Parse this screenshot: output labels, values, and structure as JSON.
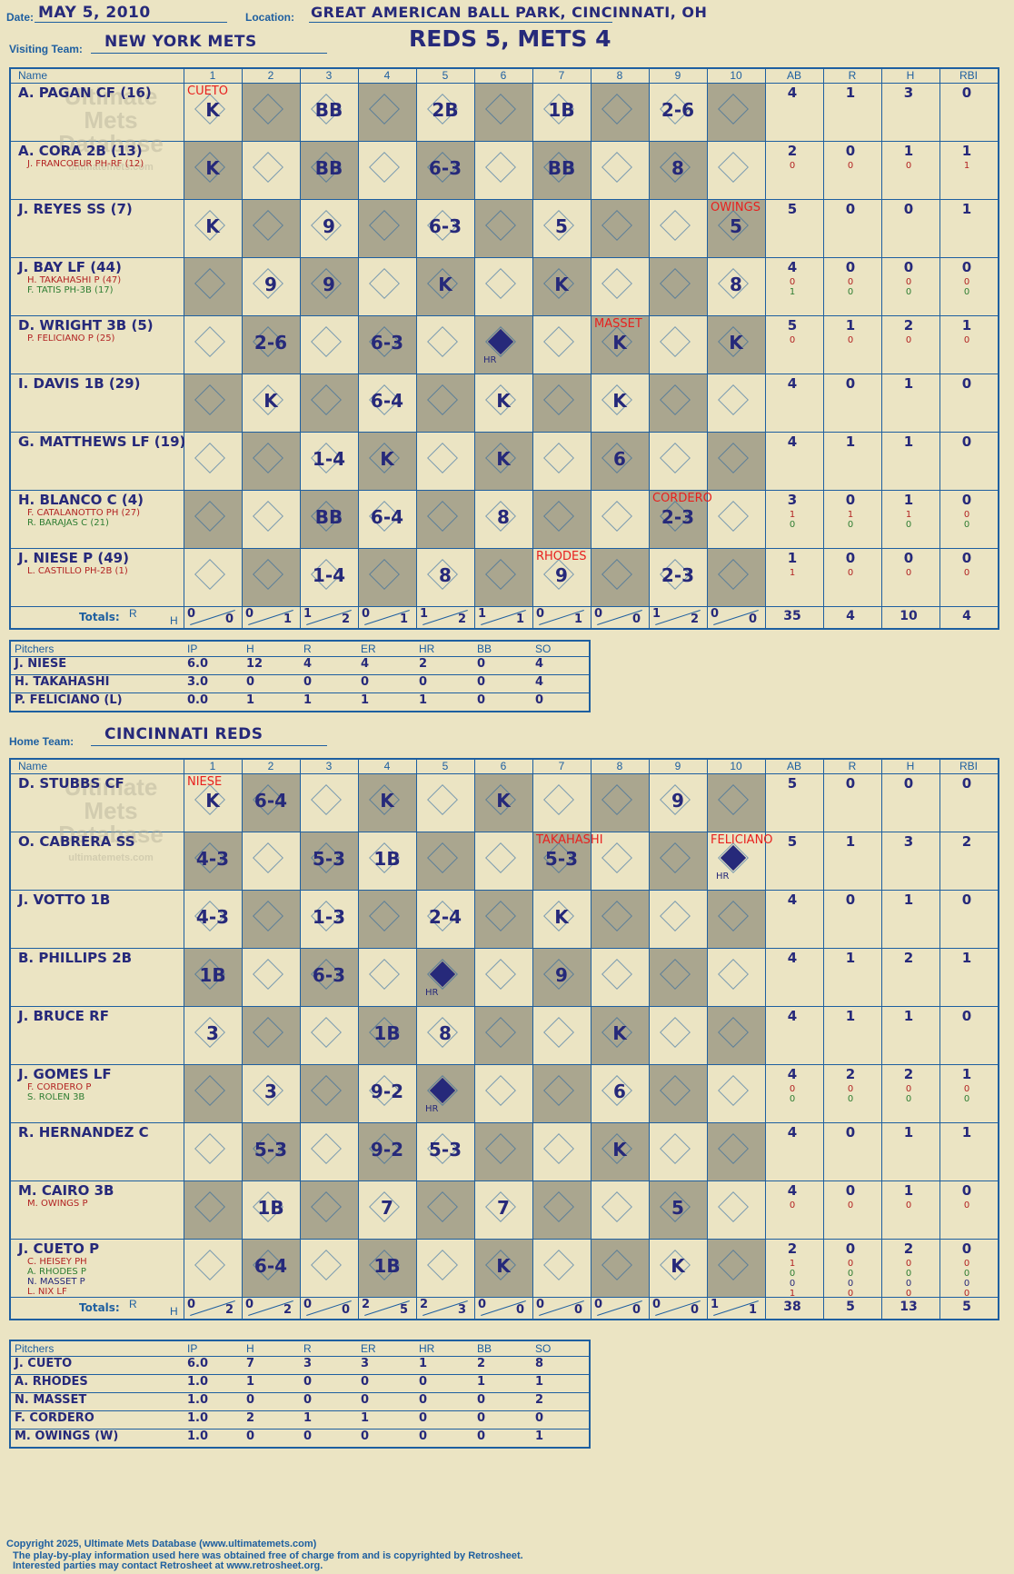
{
  "header": {
    "date_label": "Date:",
    "date": "MAY 5, 2010",
    "location_label": "Location:",
    "location": "GREAT AMERICAN BALL PARK, CINCINNATI, OH",
    "visiting_label": "Visiting Team:",
    "visiting_team": "NEW YORK METS",
    "score": "REDS 5, METS 4",
    "home_label": "Home Team:",
    "home_team": "CINCINNATI REDS"
  },
  "watermark": {
    "line1": "Ultimate",
    "line2": "Mets",
    "line3": "Database",
    "url": "ultimatemets.com"
  },
  "columns": {
    "name": "Name",
    "innings": [
      "1",
      "2",
      "3",
      "4",
      "5",
      "6",
      "7",
      "8",
      "9",
      "10"
    ],
    "stats": [
      "AB",
      "R",
      "H",
      "RBI"
    ],
    "totals_label": "Totals:",
    "r": "R",
    "h": "H"
  },
  "visitors": {
    "batters": [
      {
        "name": "A. PAGAN CF (16)",
        "subs": [],
        "stats": [
          "4",
          "1",
          "3",
          "0"
        ],
        "substats": []
      },
      {
        "name": "A. CORA 2B (13)",
        "subs": [
          {
            "text": "J. FRANCOEUR PH-RF (12)",
            "color": "#b22222"
          }
        ],
        "stats": [
          "2",
          "0",
          "1",
          "1"
        ],
        "substats": [
          [
            "0",
            "0",
            "0",
            "1"
          ]
        ]
      },
      {
        "name": "J. REYES SS (7)",
        "subs": [],
        "stats": [
          "5",
          "0",
          "0",
          "1"
        ],
        "substats": []
      },
      {
        "name": "J. BAY LF (44)",
        "subs": [
          {
            "text": "H. TAKAHASHI P (47)",
            "color": "#b22222"
          },
          {
            "text": "F. TATIS PH-3B (17)",
            "color": "#2e7d32"
          }
        ],
        "stats": [
          "4",
          "0",
          "0",
          "0"
        ],
        "substats": [
          [
            "0",
            "0",
            "0",
            "0"
          ],
          [
            "1",
            "0",
            "0",
            "0"
          ]
        ]
      },
      {
        "name": "D. WRIGHT 3B (5)",
        "subs": [
          {
            "text": "P. FELICIANO P (25)",
            "color": "#b22222"
          }
        ],
        "stats": [
          "5",
          "1",
          "2",
          "1"
        ],
        "substats": [
          [
            "0",
            "0",
            "0",
            "0"
          ]
        ]
      },
      {
        "name": "I. DAVIS 1B (29)",
        "subs": [],
        "stats": [
          "4",
          "0",
          "1",
          "0"
        ],
        "substats": []
      },
      {
        "name": "G. MATTHEWS LF (19)",
        "subs": [],
        "stats": [
          "4",
          "1",
          "1",
          "0"
        ],
        "substats": []
      },
      {
        "name": "H. BLANCO C (4)",
        "subs": [
          {
            "text": "F. CATALANOTTO PH (27)",
            "color": "#b22222"
          },
          {
            "text": "R. BARAJAS C (21)",
            "color": "#2e7d32"
          }
        ],
        "stats": [
          "3",
          "0",
          "1",
          "0"
        ],
        "substats": [
          [
            "1",
            "1",
            "1",
            "0"
          ],
          [
            "0",
            "0",
            "0",
            "0"
          ]
        ]
      },
      {
        "name": "J. NIESE P (49)",
        "subs": [
          {
            "text": "L. CASTILLO PH-2B (1)",
            "color": "#b22222"
          }
        ],
        "stats": [
          "1",
          "0",
          "0",
          "0"
        ],
        "substats": [
          [
            "1",
            "0",
            "0",
            "0"
          ]
        ]
      }
    ],
    "totals_rh": [
      [
        "0",
        "0"
      ],
      [
        "0",
        "1"
      ],
      [
        "1",
        "2"
      ],
      [
        "0",
        "1"
      ],
      [
        "1",
        "2"
      ],
      [
        "1",
        "1"
      ],
      [
        "0",
        "1"
      ],
      [
        "0",
        "0"
      ],
      [
        "1",
        "2"
      ],
      [
        "0",
        "0"
      ]
    ],
    "totals_stats": [
      "35",
      "4",
      "10",
      "4"
    ],
    "pitchers_header": [
      "Pitchers",
      "IP",
      "H",
      "R",
      "ER",
      "HR",
      "BB",
      "SO"
    ],
    "pitchers": [
      [
        "J. NIESE",
        "6.0",
        "12",
        "4",
        "4",
        "2",
        "0",
        "4"
      ],
      [
        "H. TAKAHASHI",
        "3.0",
        "0",
        "0",
        "0",
        "0",
        "0",
        "4"
      ],
      [
        "P. FELICIANO (L)",
        "0.0",
        "1",
        "1",
        "1",
        "1",
        "0",
        "0"
      ]
    ]
  },
  "home": {
    "batters": [
      {
        "name": "D. STUBBS CF",
        "subs": [],
        "stats": [
          "5",
          "0",
          "0",
          "0"
        ],
        "substats": []
      },
      {
        "name": "O. CABRERA SS",
        "subs": [],
        "stats": [
          "5",
          "1",
          "3",
          "2"
        ],
        "substats": []
      },
      {
        "name": "J. VOTTO 1B",
        "subs": [],
        "stats": [
          "4",
          "0",
          "1",
          "0"
        ],
        "substats": []
      },
      {
        "name": "B. PHILLIPS 2B",
        "subs": [],
        "stats": [
          "4",
          "1",
          "2",
          "1"
        ],
        "substats": []
      },
      {
        "name": "J. BRUCE RF",
        "subs": [],
        "stats": [
          "4",
          "1",
          "1",
          "0"
        ],
        "substats": []
      },
      {
        "name": "J. GOMES LF",
        "subs": [
          {
            "text": "F. CORDERO P",
            "color": "#b22222"
          },
          {
            "text": "S. ROLEN 3B",
            "color": "#2e7d32"
          }
        ],
        "stats": [
          "4",
          "2",
          "2",
          "1"
        ],
        "substats": [
          [
            "0",
            "0",
            "0",
            "0"
          ],
          [
            "0",
            "0",
            "0",
            "0"
          ]
        ]
      },
      {
        "name": "R. HERNANDEZ C",
        "subs": [],
        "stats": [
          "4",
          "0",
          "1",
          "1"
        ],
        "substats": []
      },
      {
        "name": "M. CAIRO 3B",
        "subs": [
          {
            "text": "M. OWINGS P",
            "color": "#b22222"
          }
        ],
        "stats": [
          "4",
          "0",
          "1",
          "0"
        ],
        "substats": [
          [
            "0",
            "0",
            "0",
            "0"
          ]
        ]
      },
      {
        "name": "J. CUETO P",
        "subs": [
          {
            "text": "C. HEISEY PH",
            "color": "#b22222"
          },
          {
            "text": "A. RHODES P",
            "color": "#2e7d32"
          },
          {
            "text": "N. MASSET P",
            "color": "#26297a"
          },
          {
            "text": "L. NIX LF",
            "color": "#b22222"
          }
        ],
        "stats": [
          "2",
          "0",
          "2",
          "0"
        ],
        "substats": [
          [
            "1",
            "0",
            "0",
            "0"
          ],
          [
            "0",
            "0",
            "0",
            "0"
          ],
          [
            "0",
            "0",
            "0",
            "0"
          ],
          [
            "1",
            "0",
            "0",
            "0"
          ]
        ]
      }
    ],
    "totals_rh": [
      [
        "0",
        "2"
      ],
      [
        "0",
        "2"
      ],
      [
        "0",
        "0"
      ],
      [
        "2",
        "5"
      ],
      [
        "2",
        "3"
      ],
      [
        "0",
        "0"
      ],
      [
        "0",
        "0"
      ],
      [
        "0",
        "0"
      ],
      [
        "0",
        "0"
      ],
      [
        "1",
        "1"
      ]
    ],
    "totals_stats": [
      "38",
      "5",
      "13",
      "5"
    ],
    "pitchers_header": [
      "Pitchers",
      "IP",
      "H",
      "R",
      "ER",
      "HR",
      "BB",
      "SO"
    ],
    "pitchers": [
      [
        "J. CUETO",
        "6.0",
        "7",
        "3",
        "3",
        "1",
        "2",
        "8"
      ],
      [
        "A. RHODES",
        "1.0",
        "1",
        "0",
        "0",
        "0",
        "1",
        "1"
      ],
      [
        "N. MASSET",
        "1.0",
        "0",
        "0",
        "0",
        "0",
        "0",
        "2"
      ],
      [
        "F. CORDERO",
        "1.0",
        "2",
        "1",
        "1",
        "0",
        "0",
        "0"
      ],
      [
        "M. OWINGS (W)",
        "1.0",
        "0",
        "0",
        "0",
        "0",
        "0",
        "1"
      ]
    ]
  },
  "visitor_plays": [
    {
      "row": 0,
      "col": 0,
      "text": "K"
    },
    {
      "row": 0,
      "col": 2,
      "text": "BB"
    },
    {
      "row": 0,
      "col": 4,
      "text": "2B"
    },
    {
      "row": 0,
      "col": 6,
      "text": "1B"
    },
    {
      "row": 0,
      "col": 8,
      "text": "2-6"
    },
    {
      "row": 1,
      "col": 0,
      "text": "K"
    },
    {
      "row": 1,
      "col": 2,
      "text": "BB"
    },
    {
      "row": 1,
      "col": 4,
      "text": "6-3"
    },
    {
      "row": 1,
      "col": 6,
      "text": "BB"
    },
    {
      "row": 1,
      "col": 8,
      "text": "8"
    },
    {
      "row": 2,
      "col": 0,
      "text": "K"
    },
    {
      "row": 2,
      "col": 2,
      "text": "9"
    },
    {
      "row": 2,
      "col": 4,
      "text": "6-3"
    },
    {
      "row": 2,
      "col": 6,
      "text": "5"
    },
    {
      "row": 2,
      "col": 9,
      "text": "5"
    },
    {
      "row": 3,
      "col": 1,
      "text": "9"
    },
    {
      "row": 3,
      "col": 2,
      "text": "9"
    },
    {
      "row": 3,
      "col": 4,
      "text": "K"
    },
    {
      "row": 3,
      "col": 6,
      "text": "K"
    },
    {
      "row": 3,
      "col": 9,
      "text": "8"
    },
    {
      "row": 4,
      "col": 1,
      "text": "2-6"
    },
    {
      "row": 4,
      "col": 3,
      "text": "6-3"
    },
    {
      "row": 4,
      "col": 5,
      "text": "HR"
    },
    {
      "row": 4,
      "col": 7,
      "text": "K"
    },
    {
      "row": 4,
      "col": 9,
      "text": "K"
    },
    {
      "row": 5,
      "col": 1,
      "text": "K"
    },
    {
      "row": 5,
      "col": 3,
      "text": "6-4"
    },
    {
      "row": 5,
      "col": 5,
      "text": "K"
    },
    {
      "row": 5,
      "col": 7,
      "text": "K"
    },
    {
      "row": 6,
      "col": 2,
      "text": "1-4"
    },
    {
      "row": 6,
      "col": 3,
      "text": "K"
    },
    {
      "row": 6,
      "col": 5,
      "text": "K"
    },
    {
      "row": 6,
      "col": 7,
      "text": "6"
    },
    {
      "row": 7,
      "col": 2,
      "text": "BB"
    },
    {
      "row": 7,
      "col": 3,
      "text": "6-4"
    },
    {
      "row": 7,
      "col": 5,
      "text": "8"
    },
    {
      "row": 7,
      "col": 8,
      "text": "2-3"
    },
    {
      "row": 8,
      "col": 2,
      "text": "1-4"
    },
    {
      "row": 8,
      "col": 4,
      "text": "8"
    },
    {
      "row": 8,
      "col": 6,
      "text": "9"
    },
    {
      "row": 8,
      "col": 8,
      "text": "2-3"
    }
  ],
  "home_plays": [
    {
      "row": 0,
      "col": 0,
      "text": "K"
    },
    {
      "row": 0,
      "col": 1,
      "text": "6-4"
    },
    {
      "row": 0,
      "col": 3,
      "text": "K"
    },
    {
      "row": 0,
      "col": 5,
      "text": "K"
    },
    {
      "row": 0,
      "col": 8,
      "text": "9"
    },
    {
      "row": 1,
      "col": 0,
      "text": "4-3"
    },
    {
      "row": 1,
      "col": 2,
      "text": "5-3"
    },
    {
      "row": 1,
      "col": 3,
      "text": "1B"
    },
    {
      "row": 1,
      "col": 6,
      "text": "5-3"
    },
    {
      "row": 1,
      "col": 9,
      "text": "HR"
    },
    {
      "row": 2,
      "col": 0,
      "text": "4-3"
    },
    {
      "row": 2,
      "col": 2,
      "text": "1-3"
    },
    {
      "row": 2,
      "col": 4,
      "text": "2-4"
    },
    {
      "row": 2,
      "col": 6,
      "text": "K"
    },
    {
      "row": 3,
      "col": 0,
      "text": "1B"
    },
    {
      "row": 3,
      "col": 2,
      "text": "6-3"
    },
    {
      "row": 3,
      "col": 4,
      "text": "HR"
    },
    {
      "row": 3,
      "col": 6,
      "text": "9"
    },
    {
      "row": 4,
      "col": 0,
      "text": "3"
    },
    {
      "row": 4,
      "col": 3,
      "text": "1B"
    },
    {
      "row": 4,
      "col": 4,
      "text": "8"
    },
    {
      "row": 4,
      "col": 7,
      "text": "K"
    },
    {
      "row": 5,
      "col": 1,
      "text": "3"
    },
    {
      "row": 5,
      "col": 3,
      "text": "9-2"
    },
    {
      "row": 5,
      "col": 4,
      "text": "HR"
    },
    {
      "row": 5,
      "col": 7,
      "text": "6"
    },
    {
      "row": 6,
      "col": 1,
      "text": "5-3"
    },
    {
      "row": 6,
      "col": 3,
      "text": "9-2"
    },
    {
      "row": 6,
      "col": 4,
      "text": "5-3"
    },
    {
      "row": 6,
      "col": 7,
      "text": "K"
    },
    {
      "row": 7,
      "col": 1,
      "text": "1B"
    },
    {
      "row": 7,
      "col": 3,
      "text": "7"
    },
    {
      "row": 7,
      "col": 5,
      "text": "7"
    },
    {
      "row": 7,
      "col": 8,
      "text": "5"
    },
    {
      "row": 8,
      "col": 1,
      "text": "6-4"
    },
    {
      "row": 8,
      "col": 3,
      "text": "1B"
    },
    {
      "row": 8,
      "col": 5,
      "text": "K"
    },
    {
      "row": 8,
      "col": 8,
      "text": "K"
    }
  ],
  "pitching_changes": {
    "visitor": [
      {
        "row": 0,
        "col": 0,
        "text": "CUETO"
      },
      {
        "row": 2,
        "col": 9,
        "text": "OWINGS"
      },
      {
        "row": 4,
        "col": 7,
        "text": "MASSET"
      },
      {
        "row": 7,
        "col": 8,
        "text": "CORDERO"
      },
      {
        "row": 8,
        "col": 6,
        "text": "RHODES"
      }
    ],
    "home": [
      {
        "row": 0,
        "col": 0,
        "text": "NIESE"
      },
      {
        "row": 1,
        "col": 6,
        "text": "TAKAHASHI"
      },
      {
        "row": 1,
        "col": 9,
        "text": "FELICIANO"
      }
    ]
  },
  "footer": {
    "line1": "Copyright 2025, Ultimate Mets Database (www.ultimatemets.com)",
    "line2": "The play-by-play information used here was obtained free of charge from and is copyrighted by Retrosheet.",
    "line3": "Interested parties may contact Retrosheet at www.retrosheet.org."
  },
  "colors": {
    "paper": "#ebe4c3",
    "grid": "#1e5fa0",
    "shade": "#aaa68f",
    "ink": "#26297a",
    "red": "#e8201e"
  }
}
